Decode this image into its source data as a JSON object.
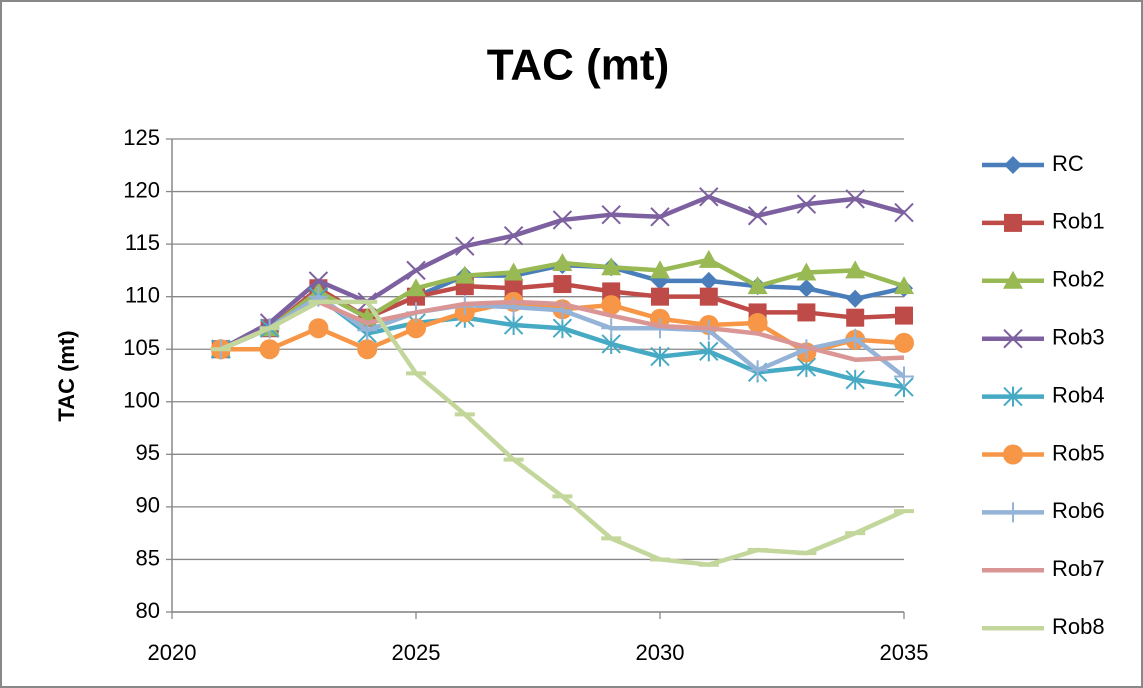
{
  "chart_data": {
    "type": "line",
    "title": "TAC (mt)",
    "y_label": "TAC (mt)",
    "x": [
      2021,
      2022,
      2023,
      2024,
      2025,
      2026,
      2027,
      2028,
      2029,
      2030,
      2031,
      2032,
      2033,
      2034,
      2035
    ],
    "xlim": [
      2020,
      2035
    ],
    "xticks": [
      2020,
      2025,
      2030,
      2035
    ],
    "ylim": [
      80,
      125
    ],
    "yticks": [
      80,
      85,
      90,
      95,
      100,
      105,
      110,
      115,
      120,
      125
    ],
    "grid": true,
    "legend": "right",
    "series": [
      {
        "name": "RC",
        "color": "#4a7ebb",
        "marker": "diamond",
        "values": [
          105,
          107,
          110.5,
          108,
          110,
          112,
          112,
          113,
          112.8,
          111.5,
          111.5,
          111,
          110.8,
          109.8,
          110.8
        ]
      },
      {
        "name": "Rob1",
        "color": "#be4b48",
        "marker": "square",
        "values": [
          105,
          107,
          110.8,
          108,
          110,
          111,
          110.8,
          111.2,
          110.5,
          110,
          110,
          108.5,
          108.5,
          108,
          108.2
        ]
      },
      {
        "name": "Rob2",
        "color": "#98b954",
        "marker": "triangle",
        "values": [
          105,
          107,
          110.5,
          108,
          110.8,
          112,
          112.3,
          113.2,
          112.8,
          112.5,
          113.5,
          111,
          112.3,
          112.5,
          111
        ]
      },
      {
        "name": "Rob3",
        "color": "#7d60a0",
        "marker": "x",
        "values": [
          105,
          107.5,
          111.5,
          109.5,
          112.5,
          114.8,
          115.8,
          117.3,
          117.8,
          117.6,
          119.5,
          117.7,
          118.8,
          119.3,
          118
        ]
      },
      {
        "name": "Rob4",
        "color": "#46aac5",
        "marker": "star",
        "values": [
          105,
          107,
          110,
          106.5,
          107.5,
          108,
          107.3,
          107,
          105.5,
          104.3,
          104.8,
          102.8,
          103.3,
          102.1,
          101.4
        ]
      },
      {
        "name": "Rob5",
        "color": "#f79646",
        "marker": "circle",
        "values": [
          105,
          105,
          107,
          105,
          107,
          108.5,
          109.5,
          108.8,
          109.2,
          107.9,
          107.3,
          107.5,
          104.7,
          105.9,
          105.6
        ]
      },
      {
        "name": "Rob6",
        "color": "#95b3d7",
        "marker": "plus",
        "values": [
          105,
          107,
          110,
          106.8,
          108.5,
          109.2,
          109,
          108.7,
          107,
          107,
          106.8,
          103,
          105,
          106,
          102.4
        ]
      },
      {
        "name": "Rob7",
        "color": "#d99694",
        "marker": "none",
        "values": [
          105,
          107,
          109.5,
          107.5,
          108.5,
          109.3,
          109.5,
          109.3,
          108.2,
          107.2,
          107,
          106.5,
          105.2,
          104,
          104.2
        ]
      },
      {
        "name": "Rob8",
        "color": "#c3d69b",
        "marker": "dash",
        "values": [
          105,
          107,
          109.5,
          109.5,
          102.7,
          98.8,
          94.5,
          91,
          87,
          85,
          84.5,
          85.9,
          85.6,
          87.5,
          89.6
        ]
      }
    ]
  }
}
